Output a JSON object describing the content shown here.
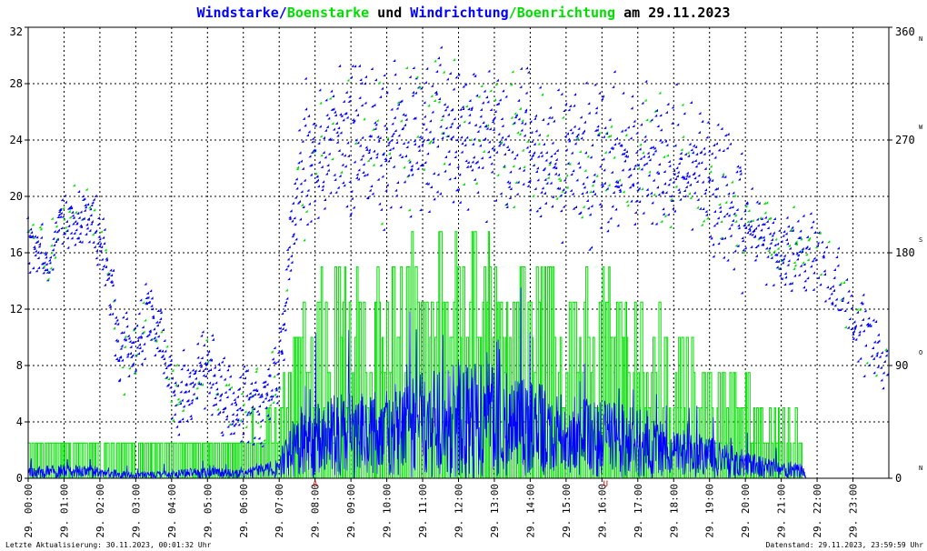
{
  "chart_data": {
    "type": "scatter",
    "title": {
      "part1": "Windstarke",
      "sep1": "/",
      "part2": "Boenstarke",
      "part3": " und ",
      "part4": "Windrichtung",
      "sep2": "/",
      "part5": "Boenrichtung",
      "part6": " am 29.11.2023"
    },
    "colors": {
      "blue": "#0000ff",
      "green": "#00dd00",
      "grid": "#000000",
      "marker": "#cc0000"
    },
    "y_left": {
      "range": [
        0,
        32
      ],
      "ticks": [
        "0",
        "4",
        "8",
        "12",
        "16",
        "20",
        "24",
        "28",
        "32"
      ]
    },
    "y_right": {
      "range": [
        0,
        360
      ],
      "ticks": [
        {
          "value": 0,
          "deg": "0",
          "dir": "N"
        },
        {
          "value": 90,
          "deg": "90",
          "dir": "O"
        },
        {
          "value": 180,
          "deg": "180",
          "dir": "S"
        },
        {
          "value": 270,
          "deg": "270",
          "dir": "W"
        },
        {
          "value": 360,
          "deg": "360",
          "dir": "N"
        }
      ]
    },
    "x_axis": {
      "range": [
        0,
        24
      ],
      "ticks": [
        "29. 00:00",
        "29. 01:00",
        "29. 02:00",
        "29. 03:00",
        "29. 04:00",
        "29. 05:00",
        "29. 06:00",
        "29. 07:00",
        "29. 08:00",
        "29. 09:00",
        "29. 10:00",
        "29. 11:00",
        "29. 12:00",
        "29. 13:00",
        "29. 14:00",
        "29. 15:00",
        "29. 16:00",
        "29. 17:00",
        "29. 18:00",
        "29. 19:00",
        "29. 20:00",
        "29. 21:00",
        "29. 22:00",
        "29. 23:00"
      ]
    },
    "markers": [
      {
        "hour": 8.0,
        "label": "A"
      },
      {
        "hour": 16.1,
        "label": "U"
      }
    ],
    "direction_trend": [
      [
        0.0,
        190
      ],
      [
        0.3,
        185
      ],
      [
        0.6,
        175
      ],
      [
        1.0,
        210
      ],
      [
        1.3,
        205
      ],
      [
        1.6,
        210
      ],
      [
        1.9,
        200
      ],
      [
        2.2,
        175
      ],
      [
        2.6,
        95
      ],
      [
        3.0,
        110
      ],
      [
        3.4,
        130
      ],
      [
        3.8,
        100
      ],
      [
        4.2,
        60
      ],
      [
        4.6,
        75
      ],
      [
        5.0,
        90
      ],
      [
        5.5,
        60
      ],
      [
        6.0,
        60
      ],
      [
        6.5,
        55
      ],
      [
        7.0,
        80
      ],
      [
        7.4,
        200
      ],
      [
        7.8,
        250
      ],
      [
        8.5,
        270
      ],
      [
        9.5,
        265
      ],
      [
        10.5,
        270
      ],
      [
        11.5,
        275
      ],
      [
        12.5,
        270
      ],
      [
        13.5,
        265
      ],
      [
        14.5,
        260
      ],
      [
        15.5,
        255
      ],
      [
        16.5,
        255
      ],
      [
        17.5,
        250
      ],
      [
        18.5,
        245
      ],
      [
        19.2,
        235
      ],
      [
        19.8,
        215
      ],
      [
        20.2,
        195
      ],
      [
        20.8,
        185
      ],
      [
        21.3,
        180
      ],
      [
        21.8,
        185
      ],
      [
        22.2,
        165
      ],
      [
        22.7,
        150
      ],
      [
        23.0,
        125
      ],
      [
        23.5,
        110
      ],
      [
        23.99,
        95
      ]
    ],
    "wind_level": [
      [
        0.0,
        0.4
      ],
      [
        1.0,
        0.5
      ],
      [
        2.0,
        0.4
      ],
      [
        3.0,
        0.2
      ],
      [
        4.0,
        0.3
      ],
      [
        5.0,
        0.4
      ],
      [
        6.0,
        0.3
      ],
      [
        7.0,
        0.8
      ],
      [
        7.5,
        2.5
      ],
      [
        8.5,
        3.0
      ],
      [
        10.0,
        3.2
      ],
      [
        11.0,
        3.8
      ],
      [
        12.0,
        4.2
      ],
      [
        13.0,
        4.0
      ],
      [
        14.0,
        3.5
      ],
      [
        15.0,
        3.0
      ],
      [
        16.0,
        2.8
      ],
      [
        17.0,
        2.5
      ],
      [
        18.0,
        1.8
      ],
      [
        19.0,
        1.5
      ],
      [
        20.0,
        1.0
      ],
      [
        21.0,
        0.6
      ],
      [
        21.6,
        0.5
      ],
      [
        21.7,
        0
      ]
    ],
    "gust_level": [
      [
        0.0,
        2.5
      ],
      [
        1.0,
        2.5
      ],
      [
        2.0,
        2.5
      ],
      [
        3.0,
        2.5
      ],
      [
        4.0,
        2.5
      ],
      [
        5.0,
        2.5
      ],
      [
        6.0,
        2.5
      ],
      [
        7.0,
        4.0
      ],
      [
        7.5,
        9.0
      ],
      [
        8.5,
        10.0
      ],
      [
        10.0,
        11.0
      ],
      [
        11.0,
        12.0
      ],
      [
        12.0,
        13.0
      ],
      [
        13.0,
        12.5
      ],
      [
        14.0,
        11.0
      ],
      [
        15.0,
        10.5
      ],
      [
        16.0,
        10.0
      ],
      [
        17.0,
        9.0
      ],
      [
        18.0,
        7.0
      ],
      [
        19.0,
        6.5
      ],
      [
        20.0,
        5.0
      ],
      [
        21.0,
        3.0
      ],
      [
        21.6,
        2.5
      ],
      [
        21.7,
        0
      ]
    ],
    "grid": true
  },
  "footer": {
    "left": "Letzte Aktualisierung: 30.11.2023, 00:01:32 Uhr",
    "right": "Datenstand: 29.11.2023, 23:59:59 Uhr"
  }
}
